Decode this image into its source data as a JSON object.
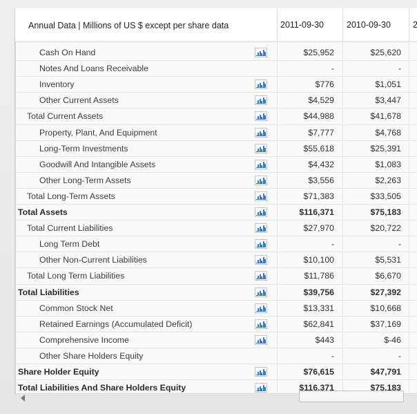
{
  "header": {
    "title": "Annual Data | Millions of US $ except per share data",
    "col1": "2011-09-30",
    "col2": "2010-09-30",
    "col3_partial": "2"
  },
  "rows": [
    {
      "label": "Cash On Hand",
      "v1": "$25,952",
      "v2": "$25,620",
      "indent": 2,
      "chart": true,
      "bold": false
    },
    {
      "label": "Notes And Loans Receivable",
      "v1": "-",
      "v2": "-",
      "indent": 2,
      "chart": false,
      "bold": false
    },
    {
      "label": "Inventory",
      "v1": "$776",
      "v2": "$1,051",
      "indent": 2,
      "chart": true,
      "bold": false
    },
    {
      "label": "Other Current Assets",
      "v1": "$4,529",
      "v2": "$3,447",
      "indent": 2,
      "chart": true,
      "bold": false
    },
    {
      "label": "Total Current Assets",
      "v1": "$44,988",
      "v2": "$41,678",
      "indent": 1,
      "chart": true,
      "bold": false
    },
    {
      "label": "Property, Plant, And Equipment",
      "v1": "$7,777",
      "v2": "$4,768",
      "indent": 2,
      "chart": true,
      "bold": false
    },
    {
      "label": "Long-Term Investments",
      "v1": "$55,618",
      "v2": "$25,391",
      "indent": 2,
      "chart": true,
      "bold": false
    },
    {
      "label": "Goodwill And Intangible Assets",
      "v1": "$4,432",
      "v2": "$1,083",
      "indent": 2,
      "chart": true,
      "bold": false
    },
    {
      "label": "Other Long-Term Assets",
      "v1": "$3,556",
      "v2": "$2,263",
      "indent": 2,
      "chart": true,
      "bold": false
    },
    {
      "label": "Total Long-Term Assets",
      "v1": "$71,383",
      "v2": "$33,505",
      "indent": 1,
      "chart": true,
      "bold": false
    },
    {
      "label": "Total Assets",
      "v1": "$116,371",
      "v2": "$75,183",
      "indent": 0,
      "chart": true,
      "bold": true
    },
    {
      "label": "Total Current Liabilities",
      "v1": "$27,970",
      "v2": "$20,722",
      "indent": 1,
      "chart": true,
      "bold": false
    },
    {
      "label": "Long Term Debt",
      "v1": "-",
      "v2": "-",
      "indent": 2,
      "chart": true,
      "bold": false
    },
    {
      "label": "Other Non-Current Liabilities",
      "v1": "$10,100",
      "v2": "$5,531",
      "indent": 2,
      "chart": true,
      "bold": false
    },
    {
      "label": "Total Long Term Liabilities",
      "v1": "$11,786",
      "v2": "$6,670",
      "indent": 1,
      "chart": true,
      "bold": false
    },
    {
      "label": "Total Liabilities",
      "v1": "$39,756",
      "v2": "$27,392",
      "indent": 0,
      "chart": true,
      "bold": true
    },
    {
      "label": "Common Stock Net",
      "v1": "$13,331",
      "v2": "$10,668",
      "indent": 2,
      "chart": true,
      "bold": false
    },
    {
      "label": "Retained Earnings (Accumulated Deficit)",
      "v1": "$62,841",
      "v2": "$37,169",
      "indent": 2,
      "chart": true,
      "bold": false
    },
    {
      "label": "Comprehensive Income",
      "v1": "$443",
      "v2": "$-46",
      "indent": 2,
      "chart": true,
      "bold": false
    },
    {
      "label": "Other Share Holders Equity",
      "v1": "-",
      "v2": "-",
      "indent": 2,
      "chart": false,
      "bold": false
    },
    {
      "label": "Share Holder Equity",
      "v1": "$76,615",
      "v2": "$47,791",
      "indent": 0,
      "chart": true,
      "bold": true
    },
    {
      "label": "Total Liabilities And Share Holders Equity",
      "v1": "$116,371",
      "v2": "$75,183",
      "indent": 0,
      "chart": true,
      "bold": true
    }
  ],
  "icons": {
    "chart": "bar-chart-icon",
    "scroll_left": "scroll-left-arrow-icon"
  },
  "colors": {
    "chart_icon": "#3a7bbf"
  }
}
